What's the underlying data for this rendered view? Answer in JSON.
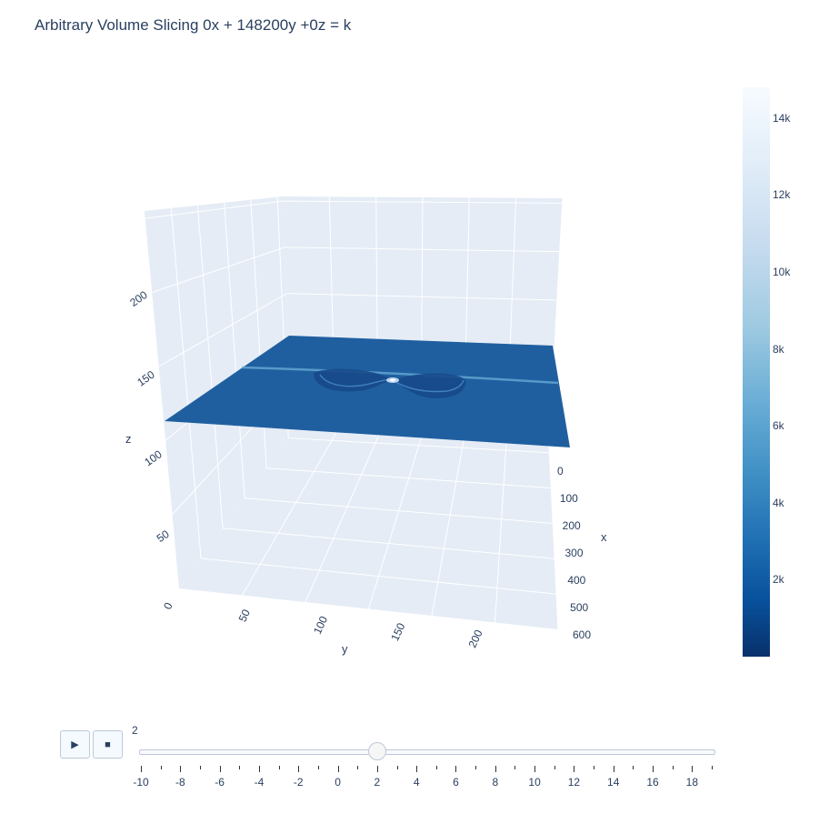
{
  "chart_data": {
    "type": "surface",
    "title": "Arbitrary Volume Slicing 0x + 148200y +0z = k",
    "axes": {
      "x": {
        "label": "x",
        "ticks": [
          "0",
          "100",
          "200",
          "300",
          "400",
          "500",
          "600"
        ],
        "range": [
          0,
          600
        ]
      },
      "y": {
        "label": "y",
        "ticks": [
          "0",
          "50",
          "100",
          "150",
          "200"
        ],
        "range": [
          0,
          240
        ]
      },
      "z": {
        "label": "z",
        "ticks": [
          "50",
          "100",
          "150",
          "200"
        ],
        "range": [
          0,
          240
        ]
      }
    },
    "slice": {
      "z_level": 121,
      "description_colors": {
        "base": "#1f5fa0",
        "highlight": "#6baed6"
      }
    },
    "colorbar": {
      "colorscale": "Blues_r",
      "range": [
        0,
        14800
      ],
      "ticks": [
        {
          "label": "14k",
          "value": 14000
        },
        {
          "label": "12k",
          "value": 12000
        },
        {
          "label": "10k",
          "value": 10000
        },
        {
          "label": "8k",
          "value": 8000
        },
        {
          "label": "6k",
          "value": 6000
        },
        {
          "label": "4k",
          "value": 4000
        },
        {
          "label": "2k",
          "value": 2000
        }
      ]
    },
    "grid": true
  },
  "animation": {
    "play_icon": "play-icon",
    "stop_icon": "stop-icon",
    "play_glyph": "▶",
    "stop_glyph": "■"
  },
  "slider": {
    "current_value": "2",
    "value": 2,
    "min": -10,
    "max": 19,
    "labels": [
      "-10",
      "-8",
      "-6",
      "-4",
      "-2",
      "0",
      "2",
      "4",
      "6",
      "8",
      "10",
      "12",
      "14",
      "16",
      "18"
    ]
  }
}
